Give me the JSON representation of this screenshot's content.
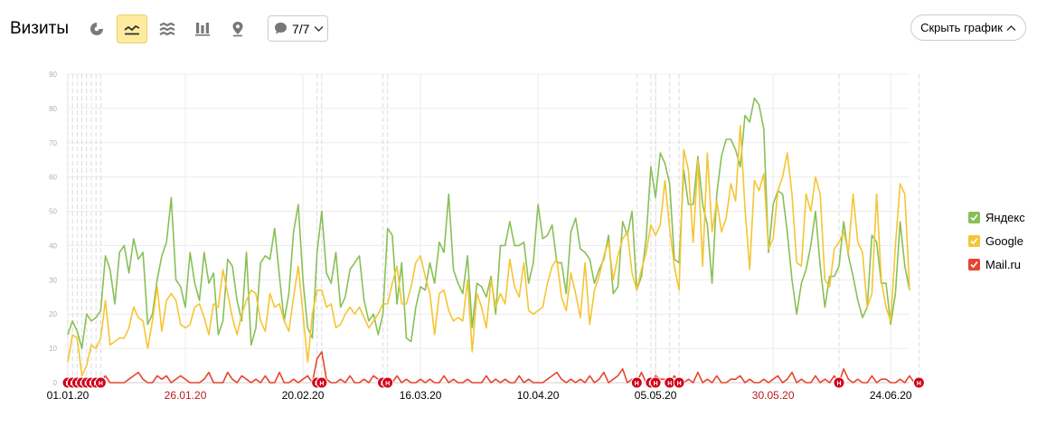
{
  "header": {
    "title": "Визиты",
    "segment_label": "7/7",
    "hide_chart_label": "Скрыть график"
  },
  "toolbar": {
    "icons": [
      "pie-chart-icon",
      "line-chart-icon",
      "area-chart-icon",
      "bar-chart-icon",
      "map-pin-icon"
    ],
    "active": "line-chart-icon"
  },
  "colors": {
    "yandex": "#88c057",
    "google": "#f5c533",
    "mail": "#e8452f",
    "accent": "#ffeba0",
    "holiday_label": "#b71c1c",
    "marker": "#d0021b"
  },
  "legend": [
    {
      "name": "Яндекс",
      "color": "#88c057"
    },
    {
      "name": "Google",
      "color": "#f5c533"
    },
    {
      "name": "Mail.ru",
      "color": "#e8452f"
    }
  ],
  "chart_data": {
    "type": "line",
    "title": "",
    "xlabel": "",
    "ylabel": "",
    "ylim": [
      0,
      90
    ],
    "y_ticks": [
      0,
      10,
      20,
      30,
      40,
      50,
      60,
      70,
      80,
      90
    ],
    "grid": true,
    "legend_position": "right",
    "x_start": "01.01.20",
    "x_end": "30.06.20",
    "x_tick_labels": [
      {
        "label": "01.01.20",
        "day": 0,
        "holiday": false
      },
      {
        "label": "26.01.20",
        "day": 25,
        "holiday": true
      },
      {
        "label": "20.02.20",
        "day": 50,
        "holiday": false
      },
      {
        "label": "16.03.20",
        "day": 75,
        "holiday": false
      },
      {
        "label": "10.04.20",
        "day": 100,
        "holiday": false
      },
      {
        "label": "05.05.20",
        "day": 125,
        "holiday": false
      },
      {
        "label": "30.05.20",
        "day": 150,
        "holiday": true
      },
      {
        "label": "24.06.20",
        "day": 175,
        "holiday": false
      }
    ],
    "annotation_days": [
      0,
      1,
      2,
      3,
      4,
      5,
      6,
      7,
      53,
      54,
      67,
      68,
      121,
      124,
      125,
      128,
      130,
      164,
      181
    ],
    "annotation_symbol": "Н",
    "series": [
      {
        "name": "Яндекс",
        "values": [
          14,
          18,
          15,
          10,
          20,
          18,
          19,
          21,
          37,
          33,
          23,
          38,
          40,
          32,
          42,
          36,
          38,
          17,
          20,
          30,
          37,
          41,
          54,
          30,
          28,
          22,
          38,
          29,
          24,
          38,
          29,
          32,
          14,
          18,
          36,
          34,
          24,
          18,
          38,
          11,
          16,
          35,
          37,
          36,
          45,
          31,
          18,
          26,
          44,
          52,
          30,
          16,
          13,
          38,
          50,
          32,
          29,
          38,
          22,
          25,
          33,
          35,
          37,
          24,
          18,
          20,
          14,
          20,
          45,
          43,
          23,
          35,
          13,
          12,
          22,
          28,
          27,
          35,
          29,
          41,
          38,
          55,
          33,
          29,
          26,
          37,
          16,
          29,
          28,
          25,
          31,
          20,
          40,
          40,
          47,
          40,
          40,
          41,
          29,
          35,
          52,
          42,
          43,
          46,
          35,
          35,
          26,
          44,
          48,
          39,
          38,
          36,
          29,
          33,
          36,
          43,
          26,
          28,
          47,
          43,
          50,
          27,
          31,
          42,
          63,
          54,
          67,
          64,
          58,
          36,
          35,
          62,
          52,
          52,
          66,
          52,
          46,
          29,
          55,
          66,
          71,
          71,
          68,
          63,
          78,
          76,
          83,
          81,
          74,
          38,
          52,
          56,
          55,
          44,
          30,
          20,
          29,
          33,
          40,
          50,
          34,
          22,
          31,
          31,
          34,
          47,
          37,
          31,
          24,
          19,
          22,
          43,
          41,
          29,
          29,
          17,
          26,
          47,
          34,
          27
        ]
      },
      {
        "name": "Google",
        "values": [
          6,
          14,
          13,
          2,
          5,
          11,
          10,
          13,
          24,
          11,
          12,
          13,
          13,
          16,
          22,
          19,
          18,
          10,
          18,
          28,
          15,
          24,
          26,
          24,
          17,
          16,
          17,
          22,
          23,
          19,
          14,
          23,
          22,
          33,
          26,
          19,
          14,
          20,
          24,
          27,
          26,
          18,
          15,
          26,
          22,
          23,
          18,
          15,
          25,
          34,
          20,
          6,
          20,
          27,
          27,
          22,
          23,
          16,
          17,
          20,
          22,
          20,
          22,
          19,
          16,
          18,
          20,
          23,
          23,
          29,
          34,
          23,
          23,
          28,
          35,
          37,
          31,
          26,
          14,
          26,
          27,
          21,
          18,
          19,
          18,
          30,
          9,
          26,
          22,
          16,
          30,
          22,
          26,
          23,
          36,
          28,
          25,
          35,
          21,
          20,
          21,
          22,
          29,
          34,
          36,
          25,
          21,
          32,
          26,
          19,
          35,
          17,
          27,
          31,
          37,
          41,
          30,
          37,
          42,
          44,
          32,
          27,
          33,
          38,
          46,
          43,
          46,
          59,
          45,
          34,
          27,
          68,
          62,
          41,
          65,
          34,
          67,
          44,
          53,
          44,
          48,
          58,
          53,
          75,
          51,
          33,
          59,
          56,
          61,
          39,
          42,
          56,
          60,
          67,
          55,
          35,
          34,
          55,
          50,
          60,
          55,
          30,
          28,
          39,
          41,
          44,
          38,
          55,
          41,
          38,
          22,
          26,
          55,
          30,
          22,
          18,
          40,
          58,
          55,
          27
        ]
      },
      {
        "name": "Mail.ru",
        "values": [
          0,
          0,
          0,
          0,
          0,
          0,
          0,
          0,
          2,
          0,
          0,
          0,
          0,
          1,
          2,
          3,
          1,
          0,
          0,
          2,
          1,
          2,
          0,
          1,
          2,
          1,
          0,
          0,
          0,
          1,
          3,
          0,
          0,
          0,
          3,
          1,
          0,
          2,
          1,
          0,
          1,
          0,
          2,
          0,
          0,
          3,
          0,
          0,
          1,
          0,
          1,
          2,
          0,
          7,
          9,
          1,
          0,
          0,
          1,
          0,
          2,
          0,
          0,
          1,
          0,
          2,
          1,
          0,
          1,
          0,
          2,
          0,
          1,
          0,
          0,
          1,
          0,
          1,
          0,
          0,
          2,
          0,
          1,
          0,
          0,
          1,
          0,
          0,
          0,
          2,
          0,
          1,
          0,
          1,
          0,
          0,
          2,
          0,
          1,
          0,
          0,
          0,
          1,
          2,
          3,
          1,
          0,
          1,
          0,
          1,
          0,
          2,
          0,
          1,
          3,
          0,
          1,
          2,
          4,
          0,
          1,
          0,
          3,
          0,
          0,
          2,
          1,
          1,
          0,
          2,
          0,
          0,
          1,
          0,
          3,
          0,
          1,
          0,
          2,
          0,
          0,
          1,
          1,
          2,
          0,
          1,
          0,
          0,
          1,
          0,
          1,
          2,
          0,
          1,
          3,
          0,
          1,
          0,
          0,
          2,
          0,
          1,
          0,
          2,
          0,
          4,
          1,
          0,
          1,
          0,
          0,
          2,
          0,
          1,
          1,
          0,
          0,
          1,
          0,
          2,
          0
        ]
      }
    ]
  }
}
